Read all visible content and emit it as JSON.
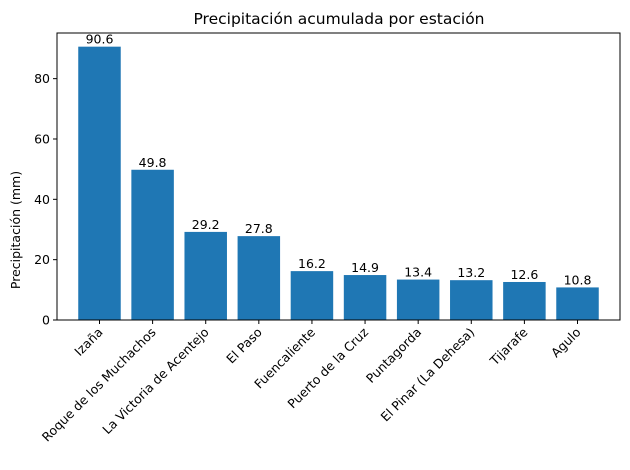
{
  "chart_data": {
    "type": "bar",
    "title": "Precipitación acumulada por estación",
    "xlabel": "",
    "ylabel": "Precipitación (mm)",
    "categories": [
      "Izaña",
      "Roque de los Muchachos",
      "La Victoria de Acentejo",
      "El Paso",
      "Fuencaliente",
      "Puerto de la Cruz",
      "Puntagorda",
      "El Pinar (La Dehesa)",
      "Tijarafe",
      "Agulo"
    ],
    "values": [
      90.6,
      49.8,
      29.2,
      27.8,
      16.2,
      14.9,
      13.4,
      13.2,
      12.6,
      10.8
    ],
    "value_labels": [
      "90.6",
      "49.8",
      "29.2",
      "27.8",
      "16.2",
      "14.9",
      "13.4",
      "13.2",
      "12.6",
      "10.8"
    ],
    "ylim": [
      0,
      95.13
    ],
    "yticks": [
      0,
      20,
      40,
      60,
      80
    ],
    "ytick_labels": [
      "0",
      "20",
      "40",
      "60",
      "80"
    ],
    "grid": false,
    "bar_color": "#1f77b4"
  }
}
